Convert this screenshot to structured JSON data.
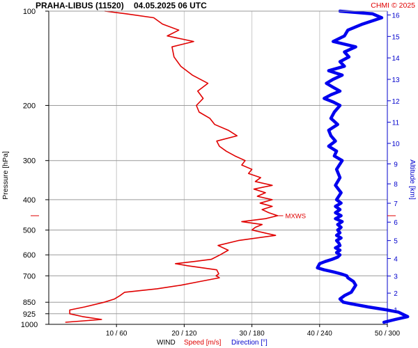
{
  "chart_data": {
    "type": "line",
    "title": "PRAHA-LIBUS (11520)",
    "datetime": "04.05.2025 06 UTC",
    "credit": "CHMI © 2025",
    "ylabel": "Pressure [hPa]",
    "y2label": "Altitude [km]",
    "xlabel_prefix": "WIND",
    "xlabel_speed": "Speed [m/s]",
    "xlabel_direction": "Direction [°]",
    "mxws_label": "MXWS",
    "mxws_pressure": 450,
    "y_scale": "log",
    "ylim": [
      1000,
      100
    ],
    "speed_lim": [
      0,
      50
    ],
    "direction_lim": [
      0,
      300
    ],
    "pressure_ticks": [
      100,
      200,
      300,
      400,
      500,
      600,
      700,
      850,
      925,
      1000
    ],
    "pressure_tick_labels": [
      "100",
      "200",
      "300",
      "400",
      "500",
      "600",
      "700",
      "850",
      "925",
      "1000"
    ],
    "altitude_ticks_km": [
      1,
      2,
      3,
      4,
      5,
      6,
      7,
      8,
      9,
      10,
      11,
      12,
      13,
      14,
      15,
      16
    ],
    "altitude_tick_labels": [
      "1",
      "2",
      "3",
      "4",
      "5",
      "6",
      "7",
      "8",
      "9",
      "10",
      "11",
      "12",
      "13",
      "14",
      "15",
      "16"
    ],
    "x_ticks_speed": [
      10,
      20,
      30,
      40,
      50
    ],
    "x_tick_labels": [
      "10 / 60",
      "20 / 120",
      "30 / 180",
      "40 / 240",
      "50 / 300"
    ],
    "grid": true,
    "series": [
      {
        "name": "Speed [m/s]",
        "color": "#e00000",
        "pressure": [
          985,
          965,
          945,
          925,
          900,
          880,
          850,
          830,
          810,
          790,
          770,
          750,
          730,
          710,
          700,
          690,
          670,
          650,
          640,
          630,
          620,
          600,
          580,
          560,
          540,
          520,
          500,
          490,
          480,
          470,
          460,
          450,
          440,
          430,
          420,
          410,
          400,
          390,
          380,
          370,
          360,
          350,
          340,
          330,
          320,
          310,
          300,
          290,
          280,
          270,
          260,
          250,
          240,
          230,
          220,
          210,
          200,
          190,
          180,
          170,
          160,
          150,
          140,
          130,
          125,
          120,
          115,
          110,
          105,
          102,
          100
        ],
        "speed": [
          2.5,
          7.8,
          5,
          3.1,
          3.1,
          5.3,
          8.2,
          9.7,
          10.5,
          11.2,
          16,
          19.5,
          22.3,
          25.2,
          24.7,
          25.1,
          24.8,
          20.5,
          18.7,
          21.5,
          24,
          25.3,
          26.5,
          25,
          28,
          33.5,
          30,
          30.5,
          31.5,
          28.5,
          32,
          33.8,
          32.5,
          31.5,
          33,
          31.2,
          33,
          30.8,
          32,
          30.3,
          33,
          30.5,
          31.3,
          29.5,
          30,
          28.5,
          29,
          27.5,
          26.2,
          25.2,
          24.8,
          27.8,
          26.5,
          24.5,
          23.8,
          22.2,
          21.8,
          22.8,
          22,
          23.5,
          21.2,
          19.5,
          18.5,
          18.2,
          21.4,
          17.5,
          19.2,
          16.8,
          15.5,
          11.5,
          8.3
        ],
        "stroke": 1.6
      },
      {
        "name": "Direction [°]",
        "color": "#0000ee",
        "pressure": [
          985,
          965,
          945,
          930,
          915,
          900,
          880,
          860,
          850,
          830,
          810,
          790,
          770,
          750,
          730,
          710,
          700,
          690,
          680,
          670,
          660,
          640,
          630,
          620,
          610,
          600,
          590,
          580,
          570,
          560,
          550,
          540,
          530,
          520,
          510,
          500,
          490,
          480,
          470,
          460,
          450,
          440,
          430,
          420,
          410,
          400,
          380,
          360,
          340,
          320,
          300,
          290,
          280,
          270,
          260,
          250,
          240,
          230,
          220,
          210,
          200,
          195,
          190,
          185,
          180,
          175,
          170,
          165,
          160,
          155,
          150,
          145,
          140,
          135,
          130,
          125,
          120,
          115,
          110,
          105,
          102,
          100
        ],
        "direction": [
          297,
          307,
          318,
          314,
          310,
          300,
          283,
          268,
          261,
          258,
          262,
          268,
          270,
          272,
          270,
          265,
          264,
          259,
          252,
          244,
          238,
          240,
          245,
          251,
          256,
          258,
          255,
          258,
          254,
          258,
          257,
          255,
          259,
          255,
          258,
          256,
          259,
          256,
          260,
          254,
          259,
          254,
          258,
          254,
          259,
          255,
          259,
          254,
          258,
          255,
          260,
          253,
          255,
          248,
          254,
          250,
          248,
          256,
          250,
          253,
          258,
          252,
          244,
          250,
          258,
          252,
          246,
          252,
          260,
          248,
          262,
          258,
          266,
          262,
          272,
          252,
          262,
          265,
          278,
          295,
          287,
          258
        ],
        "stroke": 4.5
      }
    ]
  }
}
